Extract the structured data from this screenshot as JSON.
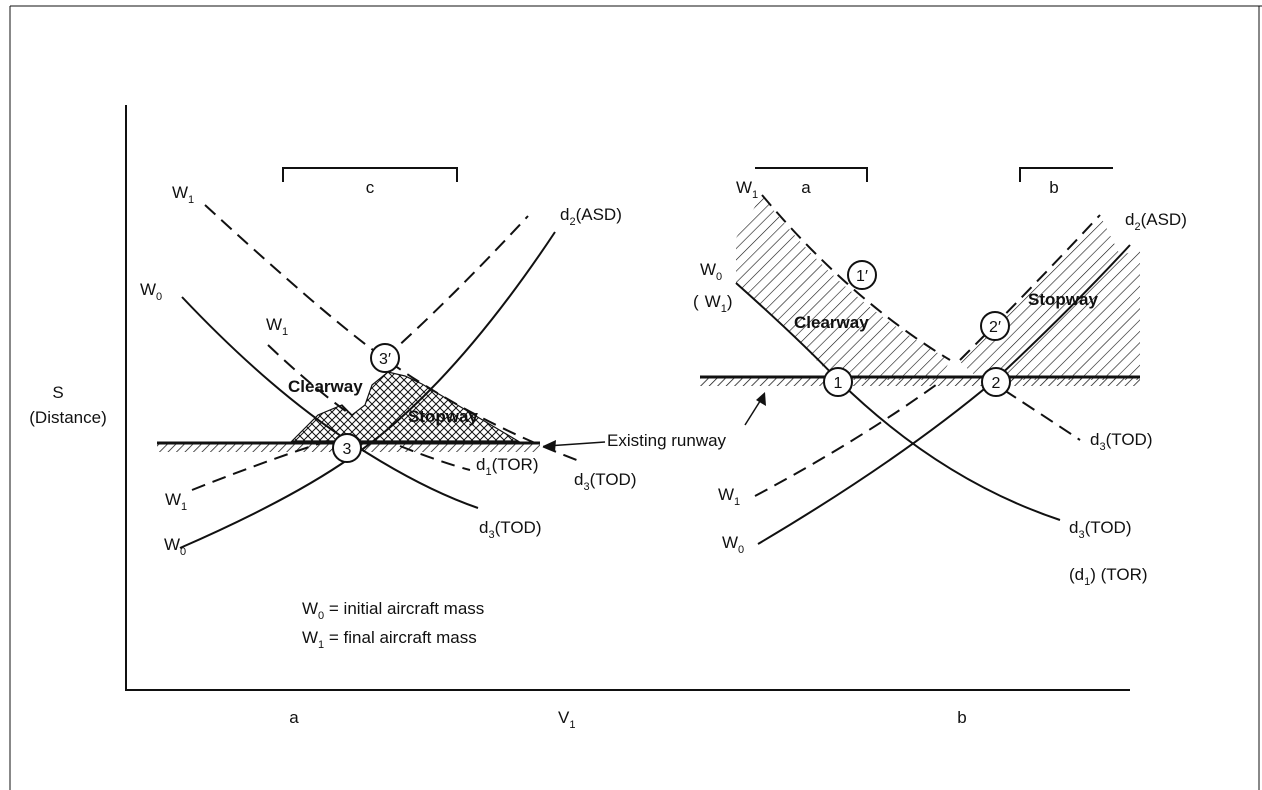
{
  "diagram": {
    "y_axis_label": "S",
    "y_axis_label_2": "(Distance)",
    "x_axis_label": "V",
    "x_axis_label_sub": "1",
    "panel_a_label": "a",
    "panel_b_label": "b",
    "left": {
      "bracket_label": "c",
      "labels": {
        "w1_top": "W",
        "w1_top_sub": "1",
        "w0_left": "W",
        "w0_left_sub": "0",
        "w1_mid": "W",
        "w1_mid_sub": "1",
        "w1_low": "W",
        "w1_low_sub": "1",
        "w0_low": "W",
        "w0_low_sub": "0",
        "d2": "d",
        "d2_sub": "2",
        "d2_tail": "(ASD)",
        "d1": "d",
        "d1_sub": "1",
        "d1_tail": "(TOR)",
        "d3a": "d",
        "d3a_sub": "3",
        "d3a_tail": "(TOD)",
        "d3b": "d",
        "d3b_sub": "3",
        "d3b_tail": "(TOD)"
      },
      "clearway": "Clearway",
      "stopway": "Stopway",
      "point_3prime": "3′",
      "point_3": "3",
      "existing_runway": "Existing runway"
    },
    "right": {
      "bracket_a": "a",
      "bracket_b": "b",
      "labels": {
        "w1_top": "W",
        "w1_top_sub": "1",
        "w0": "W",
        "w0_sub": "0",
        "w1_paren_open": "(",
        "w1_paren": "W",
        "w1_paren_sub": "1",
        "w1_paren_close": ")",
        "w1_low": "W",
        "w1_low_sub": "1",
        "w0_low": "W",
        "w0_low_sub": "0",
        "d2": "d",
        "d2_sub": "2",
        "d2_tail": "(ASD)",
        "d3a": "d",
        "d3a_sub": "3",
        "d3a_tail": "(TOD)",
        "d3b": "d",
        "d3b_sub": "3",
        "d3b_tail": "(TOD)",
        "d1_open": "(d",
        "d1_sub": "1",
        "d1_tail": ") (TOR)"
      },
      "clearway": "Clearway",
      "stopway": "Stopway",
      "point_1prime": "1′",
      "point_2prime": "2′",
      "point_1": "1",
      "point_2": "2"
    },
    "legend": {
      "w0_sym": "W",
      "w0_sub": "0",
      "w0_text": " = initial aircraft mass",
      "w1_sym": "W",
      "w1_sub": "1",
      "w1_text": " = final aircraft mass"
    }
  }
}
